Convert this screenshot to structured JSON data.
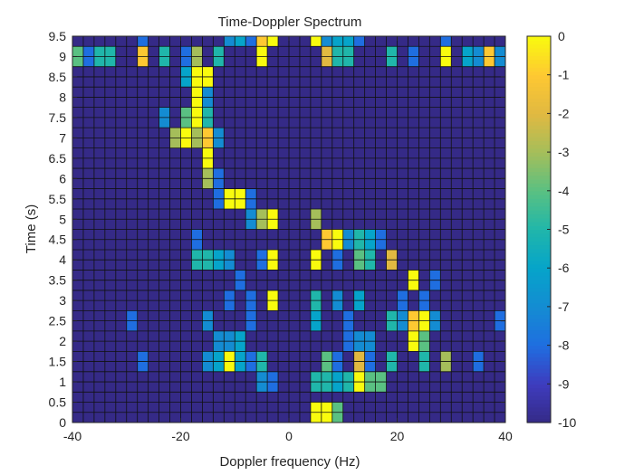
{
  "chart_data": {
    "type": "heatmap",
    "title": "Time-Doppler Spectrum",
    "xlabel": "Doppler frequency (Hz)",
    "ylabel": "Time (s)",
    "xlim": [
      -40,
      40
    ],
    "ylim": [
      0,
      9.5
    ],
    "x_cell_width": 2,
    "y_cell_height": 0.25,
    "x_ticks": [
      "-40",
      "-20",
      "0",
      "20",
      "40"
    ],
    "y_ticks": [
      "0",
      "0.5",
      "1",
      "1.5",
      "2",
      "2.5",
      "3",
      "3.5",
      "4",
      "4.5",
      "5",
      "5.5",
      "6",
      "6.5",
      "7",
      "7.5",
      "8",
      "8.5",
      "9",
      "9.5"
    ],
    "colorbar": {
      "range": [
        -10,
        0
      ],
      "ticks": [
        "0",
        "-1",
        "-2",
        "-3",
        "-4",
        "-5",
        "-6",
        "-7",
        "-8",
        "-9",
        "-10"
      ],
      "colormap": "parula"
    },
    "background_value": -10,
    "cells": [
      {
        "x": 5,
        "y": 0.125,
        "v": 0
      },
      {
        "x": 7,
        "y": 0.125,
        "v": 0
      },
      {
        "x": 9,
        "y": 0.125,
        "v": -4
      },
      {
        "x": 5,
        "y": 0.375,
        "v": 0
      },
      {
        "x": 7,
        "y": 0.375,
        "v": 0
      },
      {
        "x": 9,
        "y": 0.375,
        "v": -4
      },
      {
        "x": -5,
        "y": 0.875,
        "v": -7
      },
      {
        "x": -3,
        "y": 0.875,
        "v": -8
      },
      {
        "x": 5,
        "y": 0.875,
        "v": -5
      },
      {
        "x": 7,
        "y": 0.875,
        "v": -5
      },
      {
        "x": 9,
        "y": 0.875,
        "v": -6
      },
      {
        "x": 11,
        "y": 0.875,
        "v": -5
      },
      {
        "x": 13,
        "y": 0.875,
        "v": 0
      },
      {
        "x": 15,
        "y": 0.875,
        "v": -4
      },
      {
        "x": 17,
        "y": 0.875,
        "v": -4
      },
      {
        "x": -5,
        "y": 1.125,
        "v": -7
      },
      {
        "x": -3,
        "y": 1.125,
        "v": -8
      },
      {
        "x": 5,
        "y": 1.125,
        "v": -5
      },
      {
        "x": 7,
        "y": 1.125,
        "v": -5
      },
      {
        "x": 9,
        "y": 1.125,
        "v": -6
      },
      {
        "x": 11,
        "y": 1.125,
        "v": -5
      },
      {
        "x": 13,
        "y": 1.125,
        "v": 0
      },
      {
        "x": 15,
        "y": 1.125,
        "v": -4
      },
      {
        "x": 17,
        "y": 1.125,
        "v": -4
      },
      {
        "x": -27,
        "y": 1.375,
        "v": -8
      },
      {
        "x": -15,
        "y": 1.375,
        "v": -7
      },
      {
        "x": -13,
        "y": 1.375,
        "v": -6
      },
      {
        "x": -11,
        "y": 1.375,
        "v": 0
      },
      {
        "x": -9,
        "y": 1.375,
        "v": -6
      },
      {
        "x": -7,
        "y": 1.375,
        "v": -8
      },
      {
        "x": -5,
        "y": 1.375,
        "v": -5
      },
      {
        "x": 7,
        "y": 1.375,
        "v": -4
      },
      {
        "x": 9,
        "y": 1.375,
        "v": -8
      },
      {
        "x": 13,
        "y": 1.375,
        "v": -2
      },
      {
        "x": 15,
        "y": 1.375,
        "v": -8
      },
      {
        "x": 19,
        "y": 1.375,
        "v": -5
      },
      {
        "x": 25,
        "y": 1.375,
        "v": -5
      },
      {
        "x": 29,
        "y": 1.375,
        "v": -3
      },
      {
        "x": 35,
        "y": 1.375,
        "v": -8
      },
      {
        "x": -27,
        "y": 1.625,
        "v": -8
      },
      {
        "x": -15,
        "y": 1.625,
        "v": -7
      },
      {
        "x": -13,
        "y": 1.625,
        "v": -6
      },
      {
        "x": -11,
        "y": 1.625,
        "v": 0
      },
      {
        "x": -9,
        "y": 1.625,
        "v": -6
      },
      {
        "x": -7,
        "y": 1.625,
        "v": -8
      },
      {
        "x": -5,
        "y": 1.625,
        "v": -5
      },
      {
        "x": 7,
        "y": 1.625,
        "v": -4
      },
      {
        "x": 9,
        "y": 1.625,
        "v": -8
      },
      {
        "x": 13,
        "y": 1.625,
        "v": -2
      },
      {
        "x": 15,
        "y": 1.625,
        "v": -8
      },
      {
        "x": 19,
        "y": 1.625,
        "v": -5
      },
      {
        "x": 25,
        "y": 1.625,
        "v": -5
      },
      {
        "x": 29,
        "y": 1.625,
        "v": -3
      },
      {
        "x": 35,
        "y": 1.625,
        "v": -8
      },
      {
        "x": -13,
        "y": 1.875,
        "v": -7
      },
      {
        "x": -11,
        "y": 1.875,
        "v": -7
      },
      {
        "x": -9,
        "y": 1.875,
        "v": -6
      },
      {
        "x": 11,
        "y": 1.875,
        "v": -8
      },
      {
        "x": 13,
        "y": 1.875,
        "v": -7
      },
      {
        "x": 15,
        "y": 1.875,
        "v": -7
      },
      {
        "x": 23,
        "y": 1.875,
        "v": 0
      },
      {
        "x": 25,
        "y": 1.875,
        "v": -4
      },
      {
        "x": -13,
        "y": 2.125,
        "v": -7
      },
      {
        "x": -11,
        "y": 2.125,
        "v": -7
      },
      {
        "x": -9,
        "y": 2.125,
        "v": -6
      },
      {
        "x": 11,
        "y": 2.125,
        "v": -8
      },
      {
        "x": 13,
        "y": 2.125,
        "v": -7
      },
      {
        "x": 15,
        "y": 2.125,
        "v": -7
      },
      {
        "x": 23,
        "y": 2.125,
        "v": 0
      },
      {
        "x": 25,
        "y": 2.125,
        "v": -4
      },
      {
        "x": -29,
        "y": 2.375,
        "v": -8
      },
      {
        "x": -15,
        "y": 2.375,
        "v": -7
      },
      {
        "x": -7,
        "y": 2.375,
        "v": -8
      },
      {
        "x": 5,
        "y": 2.375,
        "v": -6
      },
      {
        "x": 11,
        "y": 2.375,
        "v": -8
      },
      {
        "x": 19,
        "y": 2.375,
        "v": -5
      },
      {
        "x": 21,
        "y": 2.375,
        "v": -7
      },
      {
        "x": 23,
        "y": 2.375,
        "v": -1
      },
      {
        "x": 25,
        "y": 2.375,
        "v": 0
      },
      {
        "x": 27,
        "y": 2.375,
        "v": -7
      },
      {
        "x": 39,
        "y": 2.375,
        "v": -8
      },
      {
        "x": -29,
        "y": 2.625,
        "v": -8
      },
      {
        "x": -15,
        "y": 2.625,
        "v": -7
      },
      {
        "x": -7,
        "y": 2.625,
        "v": -8
      },
      {
        "x": 5,
        "y": 2.625,
        "v": -6
      },
      {
        "x": 11,
        "y": 2.625,
        "v": -8
      },
      {
        "x": 19,
        "y": 2.625,
        "v": -5
      },
      {
        "x": 21,
        "y": 2.625,
        "v": -7
      },
      {
        "x": 23,
        "y": 2.625,
        "v": -1
      },
      {
        "x": 25,
        "y": 2.625,
        "v": 0
      },
      {
        "x": 27,
        "y": 2.625,
        "v": -7
      },
      {
        "x": 39,
        "y": 2.625,
        "v": -8
      },
      {
        "x": -11,
        "y": 2.875,
        "v": -8
      },
      {
        "x": -7,
        "y": 2.875,
        "v": -8
      },
      {
        "x": -3,
        "y": 2.875,
        "v": 0
      },
      {
        "x": 5,
        "y": 2.875,
        "v": -5
      },
      {
        "x": 9,
        "y": 2.875,
        "v": -7
      },
      {
        "x": 13,
        "y": 2.875,
        "v": -6
      },
      {
        "x": 21,
        "y": 2.875,
        "v": -8
      },
      {
        "x": 25,
        "y": 2.875,
        "v": -8
      },
      {
        "x": -11,
        "y": 3.125,
        "v": -8
      },
      {
        "x": -7,
        "y": 3.125,
        "v": -8
      },
      {
        "x": -3,
        "y": 3.125,
        "v": 0
      },
      {
        "x": 5,
        "y": 3.125,
        "v": -5
      },
      {
        "x": 9,
        "y": 3.125,
        "v": -7
      },
      {
        "x": 13,
        "y": 3.125,
        "v": -6
      },
      {
        "x": 21,
        "y": 3.125,
        "v": -8
      },
      {
        "x": 25,
        "y": 3.125,
        "v": -8
      },
      {
        "x": -9,
        "y": 3.375,
        "v": -8
      },
      {
        "x": 23,
        "y": 3.375,
        "v": 0
      },
      {
        "x": 27,
        "y": 3.375,
        "v": -8
      },
      {
        "x": -9,
        "y": 3.625,
        "v": -8
      },
      {
        "x": 23,
        "y": 3.625,
        "v": 0
      },
      {
        "x": 27,
        "y": 3.625,
        "v": -8
      },
      {
        "x": -17,
        "y": 3.875,
        "v": -5
      },
      {
        "x": -15,
        "y": 3.875,
        "v": -5
      },
      {
        "x": -13,
        "y": 3.875,
        "v": -6
      },
      {
        "x": -11,
        "y": 3.875,
        "v": -7
      },
      {
        "x": -5,
        "y": 3.875,
        "v": -8
      },
      {
        "x": -3,
        "y": 3.875,
        "v": 0
      },
      {
        "x": 5,
        "y": 3.875,
        "v": 0
      },
      {
        "x": 9,
        "y": 3.875,
        "v": -8
      },
      {
        "x": 13,
        "y": 3.875,
        "v": -4
      },
      {
        "x": 15,
        "y": 3.875,
        "v": -5
      },
      {
        "x": 19,
        "y": 3.875,
        "v": -2
      },
      {
        "x": -17,
        "y": 4.125,
        "v": -5
      },
      {
        "x": -15,
        "y": 4.125,
        "v": -5
      },
      {
        "x": -13,
        "y": 4.125,
        "v": -6
      },
      {
        "x": -11,
        "y": 4.125,
        "v": -7
      },
      {
        "x": -5,
        "y": 4.125,
        "v": -8
      },
      {
        "x": -3,
        "y": 4.125,
        "v": 0
      },
      {
        "x": 5,
        "y": 4.125,
        "v": 0
      },
      {
        "x": 9,
        "y": 4.125,
        "v": -8
      },
      {
        "x": 13,
        "y": 4.125,
        "v": -4
      },
      {
        "x": 15,
        "y": 4.125,
        "v": -5
      },
      {
        "x": 19,
        "y": 4.125,
        "v": -2
      },
      {
        "x": -17,
        "y": 4.375,
        "v": -8
      },
      {
        "x": 7,
        "y": 4.375,
        "v": -1
      },
      {
        "x": 9,
        "y": 4.375,
        "v": 0
      },
      {
        "x": 11,
        "y": 4.375,
        "v": -7
      },
      {
        "x": 13,
        "y": 4.375,
        "v": -5
      },
      {
        "x": 15,
        "y": 4.375,
        "v": -6
      },
      {
        "x": 17,
        "y": 4.375,
        "v": -8
      },
      {
        "x": -17,
        "y": 4.625,
        "v": -8
      },
      {
        "x": 7,
        "y": 4.625,
        "v": -1
      },
      {
        "x": 9,
        "y": 4.625,
        "v": 0
      },
      {
        "x": 11,
        "y": 4.625,
        "v": -7
      },
      {
        "x": 13,
        "y": 4.625,
        "v": -5
      },
      {
        "x": 15,
        "y": 4.625,
        "v": -6
      },
      {
        "x": 17,
        "y": 4.625,
        "v": -8
      },
      {
        "x": -7,
        "y": 4.875,
        "v": -7
      },
      {
        "x": -5,
        "y": 4.875,
        "v": -3
      },
      {
        "x": -3,
        "y": 4.875,
        "v": 0
      },
      {
        "x": 5,
        "y": 4.875,
        "v": -3
      },
      {
        "x": -7,
        "y": 5.125,
        "v": -7
      },
      {
        "x": -5,
        "y": 5.125,
        "v": -3
      },
      {
        "x": -3,
        "y": 5.125,
        "v": 0
      },
      {
        "x": 5,
        "y": 5.125,
        "v": -3
      },
      {
        "x": -13,
        "y": 5.375,
        "v": -8
      },
      {
        "x": -11,
        "y": 5.375,
        "v": 0
      },
      {
        "x": -9,
        "y": 5.375,
        "v": 0
      },
      {
        "x": -7,
        "y": 5.375,
        "v": -8
      },
      {
        "x": -13,
        "y": 5.625,
        "v": -8
      },
      {
        "x": -11,
        "y": 5.625,
        "v": 0
      },
      {
        "x": -9,
        "y": 5.625,
        "v": 0
      },
      {
        "x": -7,
        "y": 5.625,
        "v": -8
      },
      {
        "x": -15,
        "y": 5.875,
        "v": -3
      },
      {
        "x": -13,
        "y": 5.875,
        "v": -8
      },
      {
        "x": -15,
        "y": 6.125,
        "v": -3
      },
      {
        "x": -13,
        "y": 6.125,
        "v": -8
      },
      {
        "x": -15,
        "y": 6.375,
        "v": 0
      },
      {
        "x": -15,
        "y": 6.625,
        "v": 0
      },
      {
        "x": -21,
        "y": 6.875,
        "v": -3
      },
      {
        "x": -19,
        "y": 6.875,
        "v": 0
      },
      {
        "x": -17,
        "y": 6.875,
        "v": -3
      },
      {
        "x": -15,
        "y": 6.875,
        "v": -1
      },
      {
        "x": -13,
        "y": 6.875,
        "v": -7
      },
      {
        "x": -21,
        "y": 7.125,
        "v": -3
      },
      {
        "x": -19,
        "y": 7.125,
        "v": 0
      },
      {
        "x": -17,
        "y": 7.125,
        "v": -3
      },
      {
        "x": -15,
        "y": 7.125,
        "v": -1
      },
      {
        "x": -13,
        "y": 7.125,
        "v": -7
      },
      {
        "x": -23,
        "y": 7.375,
        "v": -7
      },
      {
        "x": -19,
        "y": 7.375,
        "v": -4
      },
      {
        "x": -17,
        "y": 7.375,
        "v": 0
      },
      {
        "x": -15,
        "y": 7.375,
        "v": -5
      },
      {
        "x": -23,
        "y": 7.625,
        "v": -7
      },
      {
        "x": -19,
        "y": 7.625,
        "v": -4
      },
      {
        "x": -17,
        "y": 7.625,
        "v": 0
      },
      {
        "x": -15,
        "y": 7.625,
        "v": -5
      },
      {
        "x": -17,
        "y": 7.875,
        "v": 0
      },
      {
        "x": -15,
        "y": 7.875,
        "v": -7
      },
      {
        "x": -17,
        "y": 8.125,
        "v": 0
      },
      {
        "x": -15,
        "y": 8.125,
        "v": -7
      },
      {
        "x": -19,
        "y": 8.375,
        "v": -6
      },
      {
        "x": -17,
        "y": 8.375,
        "v": 0
      },
      {
        "x": -15,
        "y": 8.375,
        "v": 0
      },
      {
        "x": -19,
        "y": 8.625,
        "v": -6
      },
      {
        "x": -17,
        "y": 8.625,
        "v": 0
      },
      {
        "x": -15,
        "y": 8.625,
        "v": 0
      },
      {
        "x": -39,
        "y": 8.875,
        "v": -4
      },
      {
        "x": -37,
        "y": 8.875,
        "v": -8
      },
      {
        "x": -35,
        "y": 8.875,
        "v": -5
      },
      {
        "x": -33,
        "y": 8.875,
        "v": -5
      },
      {
        "x": -27,
        "y": 8.875,
        "v": -1
      },
      {
        "x": -23,
        "y": 8.875,
        "v": -5
      },
      {
        "x": -19,
        "y": 8.875,
        "v": -8
      },
      {
        "x": -17,
        "y": 8.875,
        "v": -3
      },
      {
        "x": -13,
        "y": 8.875,
        "v": -5
      },
      {
        "x": -5,
        "y": 8.875,
        "v": 0
      },
      {
        "x": 7,
        "y": 8.875,
        "v": -2
      },
      {
        "x": 9,
        "y": 8.875,
        "v": -5
      },
      {
        "x": 11,
        "y": 8.875,
        "v": -5
      },
      {
        "x": 19,
        "y": 8.875,
        "v": -5
      },
      {
        "x": 23,
        "y": 8.875,
        "v": -8
      },
      {
        "x": 29,
        "y": 8.875,
        "v": 0
      },
      {
        "x": 33,
        "y": 8.875,
        "v": -6
      },
      {
        "x": 35,
        "y": 8.875,
        "v": -7
      },
      {
        "x": 37,
        "y": 8.875,
        "v": -1
      },
      {
        "x": 39,
        "y": 8.875,
        "v": -7
      },
      {
        "x": -39,
        "y": 9.125,
        "v": -4
      },
      {
        "x": -37,
        "y": 9.125,
        "v": -8
      },
      {
        "x": -35,
        "y": 9.125,
        "v": -5
      },
      {
        "x": -33,
        "y": 9.125,
        "v": -5
      },
      {
        "x": -27,
        "y": 9.125,
        "v": -1
      },
      {
        "x": -23,
        "y": 9.125,
        "v": -5
      },
      {
        "x": -19,
        "y": 9.125,
        "v": -8
      },
      {
        "x": -17,
        "y": 9.125,
        "v": -3
      },
      {
        "x": -13,
        "y": 9.125,
        "v": -5
      },
      {
        "x": -5,
        "y": 9.125,
        "v": 0
      },
      {
        "x": 7,
        "y": 9.125,
        "v": -2
      },
      {
        "x": 9,
        "y": 9.125,
        "v": -5
      },
      {
        "x": 11,
        "y": 9.125,
        "v": -5
      },
      {
        "x": 19,
        "y": 9.125,
        "v": -5
      },
      {
        "x": 23,
        "y": 9.125,
        "v": -8
      },
      {
        "x": 29,
        "y": 9.125,
        "v": 0
      },
      {
        "x": 33,
        "y": 9.125,
        "v": -6
      },
      {
        "x": 35,
        "y": 9.125,
        "v": -7
      },
      {
        "x": 37,
        "y": 9.125,
        "v": -1
      },
      {
        "x": 39,
        "y": 9.125,
        "v": -7
      },
      {
        "x": -27,
        "y": 9.375,
        "v": -8
      },
      {
        "x": -11,
        "y": 9.375,
        "v": -7
      },
      {
        "x": -9,
        "y": 9.375,
        "v": -6
      },
      {
        "x": -7,
        "y": 9.375,
        "v": -8
      },
      {
        "x": -5,
        "y": 9.375,
        "v": -1
      },
      {
        "x": -3,
        "y": 9.375,
        "v": 0
      },
      {
        "x": 5,
        "y": 9.375,
        "v": 0
      },
      {
        "x": 7,
        "y": 9.375,
        "v": -7
      },
      {
        "x": 9,
        "y": 9.375,
        "v": -6
      },
      {
        "x": 11,
        "y": 9.375,
        "v": -6
      },
      {
        "x": 13,
        "y": 9.375,
        "v": -8
      },
      {
        "x": 29,
        "y": 9.375,
        "v": -8
      }
    ]
  }
}
